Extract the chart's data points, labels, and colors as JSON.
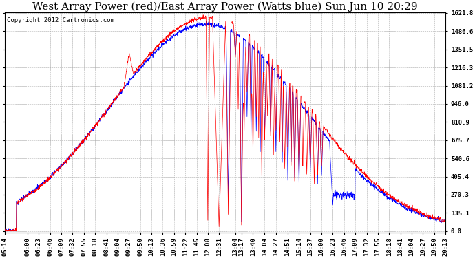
{
  "title": "West Array Power (red)/East Array Power (Watts blue) Sun Jun 10 20:29",
  "copyright": "Copyright 2012 Cartronics.com",
  "ylabel_right_values": [
    0.0,
    135.1,
    270.3,
    405.4,
    540.6,
    675.7,
    810.9,
    946.0,
    1081.2,
    1216.3,
    1351.5,
    1486.6,
    1621.8
  ],
  "ylim": [
    0.0,
    1621.8
  ],
  "x_tick_labels": [
    "05:14",
    "06:00",
    "06:23",
    "06:46",
    "07:09",
    "07:32",
    "07:55",
    "08:18",
    "08:41",
    "09:04",
    "09:27",
    "09:50",
    "10:13",
    "10:36",
    "10:59",
    "11:22",
    "11:45",
    "12:08",
    "12:31",
    "13:04",
    "13:17",
    "13:40",
    "14:04",
    "14:27",
    "14:51",
    "15:14",
    "15:37",
    "16:00",
    "16:23",
    "16:46",
    "17:09",
    "17:32",
    "17:55",
    "18:18",
    "18:41",
    "19:04",
    "19:27",
    "19:50",
    "20:13"
  ],
  "color_west": "#ff0000",
  "color_east": "#0000ff",
  "bg_color": "#ffffff",
  "grid_color": "#aaaaaa",
  "title_fontsize": 11,
  "copyright_fontsize": 6.5,
  "tick_fontsize": 6.5
}
